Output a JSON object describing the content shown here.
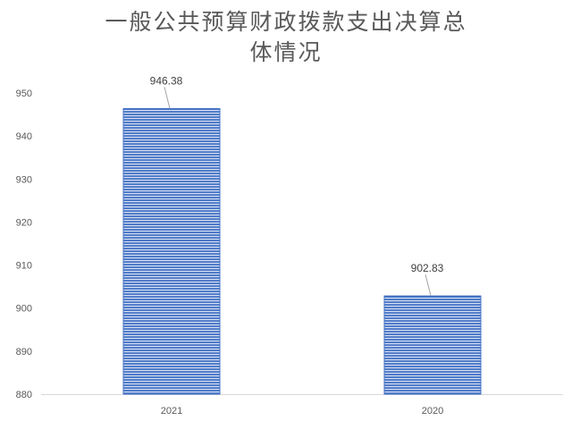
{
  "chart_data": {
    "type": "bar",
    "title_lines": [
      "一般公共预算财政拨款支出决算总",
      "体情况"
    ],
    "categories": [
      "2021",
      "2020"
    ],
    "values": [
      946.38,
      902.83
    ],
    "value_labels": [
      "946.38",
      "902.83"
    ],
    "ylim": [
      880,
      950
    ],
    "ytick_step": 10,
    "xlabel": "",
    "ylabel": "",
    "grid": false,
    "legend": "none",
    "colors": {
      "bar": "#4472C4",
      "bar_stripe": "#d6e0f3",
      "axis": "#d9d9d9",
      "tick_text": "#595959",
      "label_text": "#404040",
      "leader": "#a6a6a6"
    }
  }
}
